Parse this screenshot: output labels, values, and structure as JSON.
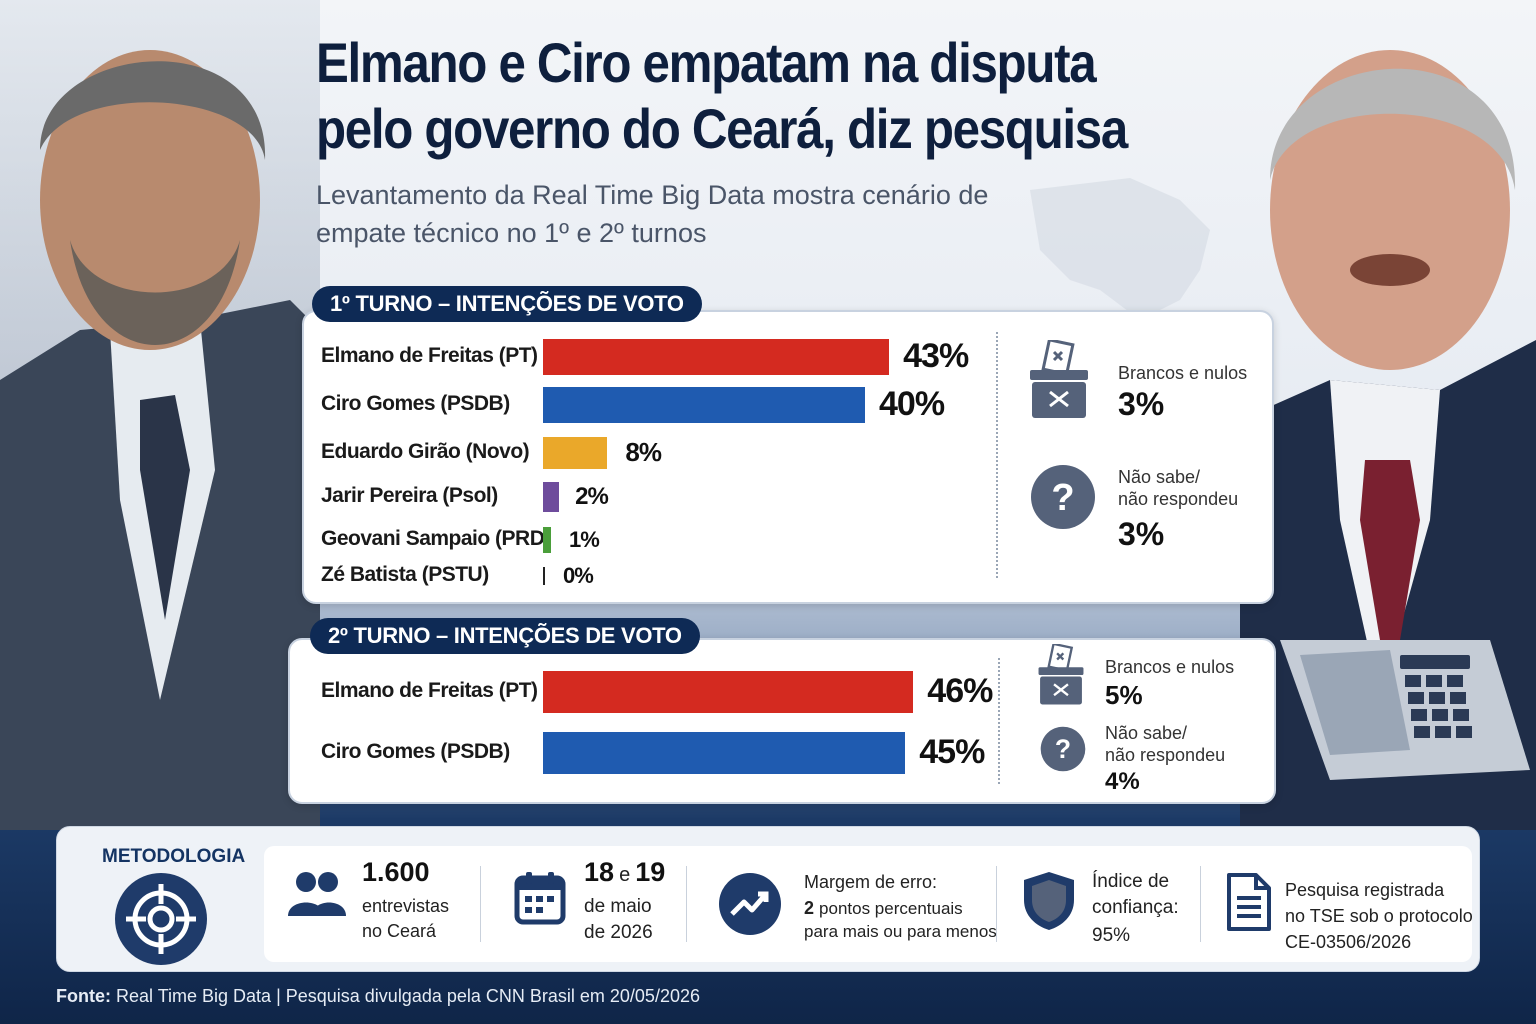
{
  "headline": {
    "title_line1": "Elmano e Ciro empatam na disputa",
    "title_line2": "pelo governo do Ceará, diz pesquisa",
    "subtitle_line1": "Levantamento da Real Time Big Data mostra cenário de",
    "subtitle_line2": "empate técnico no 1º e 2º turnos"
  },
  "colors": {
    "pt": "#d42a20",
    "psdb": "#1f5bb0",
    "novo": "#eaa82a",
    "psol": "#6e4c9c",
    "prd": "#4a9e3a",
    "pstu": "#222222",
    "navy": "#0e2a55"
  },
  "chart_data": [
    {
      "type": "bar",
      "title": "1º TURNO – INTENÇÕES DE VOTO",
      "categories": [
        "Elmano de Freitas (PT)",
        "Ciro Gomes (PSDB)",
        "Eduardo Girão (Novo)",
        "Jarir Pereira (Psol)",
        "Geovani Sampaio (PRD)",
        "Zé Batista (PSTU)"
      ],
      "values": [
        43,
        40,
        8,
        2,
        1,
        0
      ],
      "value_labels": [
        "43%",
        "40%",
        "8%",
        "2%",
        "1%",
        "0%"
      ],
      "unit": "%",
      "others": [
        {
          "label": "Brancos e nulos",
          "value": 3,
          "value_label": "3%"
        },
        {
          "label_line1": "Não sabe/",
          "label_line2": "não respondeu",
          "value": 3,
          "value_label": "3%"
        }
      ]
    },
    {
      "type": "bar",
      "title": "2º TURNO – INTENÇÕES DE VOTO",
      "categories": [
        "Elmano de Freitas (PT)",
        "Ciro Gomes (PSDB)"
      ],
      "values": [
        46,
        45
      ],
      "value_labels": [
        "46%",
        "45%"
      ],
      "unit": "%",
      "others": [
        {
          "label": "Brancos e nulos",
          "value": 5,
          "value_label": "5%"
        },
        {
          "label_line1": "Não sabe/",
          "label_line2": "não respondeu",
          "value": 4,
          "value_label": "4%"
        }
      ]
    }
  ],
  "methodology": {
    "title": "METODOLOGIA",
    "interviews_count": "1.600",
    "interviews_line1": "entrevistas",
    "interviews_line2": "no Ceará",
    "date_day1": "18",
    "date_and": "e",
    "date_day2": "19",
    "date_line1": "de maio",
    "date_line2": "de 2026",
    "margin_line1": "Margem de erro:",
    "margin_value": "2",
    "margin_line2_rest": "pontos percentuais",
    "margin_line3": "para mais ou para menos",
    "confidence_line1": "Índice de",
    "confidence_line2": "confiança:",
    "confidence_value": "95%",
    "registry_line1": "Pesquisa registrada",
    "registry_line2": "no TSE sob o protocolo",
    "registry_line3": "CE-03506/2026"
  },
  "footer": {
    "source_label": "Fonte:",
    "source_text": "Real Time Big Data | Pesquisa divulgada pela CNN Brasil em 20/05/2026"
  }
}
